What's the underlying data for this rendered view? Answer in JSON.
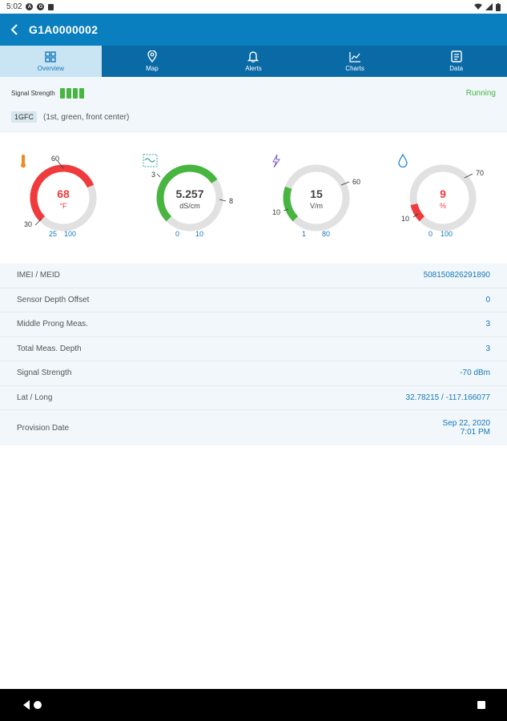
{
  "status_bar": {
    "time": "5:02"
  },
  "appbar": {
    "title": "G1A0000002"
  },
  "tabs": [
    {
      "label": "Overview",
      "icon": "grid-icon"
    },
    {
      "label": "Map",
      "icon": "map-pin-icon"
    },
    {
      "label": "Alerts",
      "icon": "bell-icon"
    },
    {
      "label": "Charts",
      "icon": "line-chart-icon"
    },
    {
      "label": "Data",
      "icon": "document-icon"
    }
  ],
  "summary": {
    "signal_label": "Signal Strength",
    "signal_bars": 4,
    "status": "Running",
    "probe_code": "1GFC",
    "probe_desc": "(1st, green, front center)"
  },
  "gauges": [
    {
      "icon": "thermometer-icon",
      "value": "68",
      "unit": "°F",
      "top_label": "60",
      "side_label": "30",
      "range_min": "25",
      "range_max": "100",
      "color": "#ef3b3b",
      "fill_fraction": 0.56
    },
    {
      "icon": "salinity-icon",
      "value": "5.257",
      "unit": "dS/cm",
      "top_label": "3",
      "side_label": "8",
      "range_min": "0",
      "range_max": "10",
      "color": "#48b540",
      "fill_fraction": 0.53
    },
    {
      "icon": "lightning-icon",
      "value": "15",
      "unit": "V/m",
      "top_label": "60",
      "side_label": "10",
      "range_min": "1",
      "range_max": "80",
      "color": "#48b540",
      "fill_fraction": 0.18
    },
    {
      "icon": "water-drop-icon",
      "value": "9",
      "unit": "%",
      "top_label": "70",
      "side_label": "10",
      "range_min": "0",
      "range_max": "100",
      "color": "#ef3b3b",
      "fill_fraction": 0.09
    }
  ],
  "details": [
    {
      "label": "IMEI / MEID",
      "value": "508150826291890"
    },
    {
      "label": "Sensor Depth Offset",
      "value": "0"
    },
    {
      "label": "Middle Prong Meas.",
      "value": "3"
    },
    {
      "label": "Total Meas. Depth",
      "value": "3"
    },
    {
      "label": "Signal Strength",
      "value": "-70 dBm"
    },
    {
      "label": "Lat / Long",
      "value": "32.78215 / -117.166077"
    },
    {
      "label": "Provision Date",
      "value_line1": "Sep 22, 2020",
      "value_line2": "7:01 PM"
    }
  ],
  "colors": {
    "primary": "#0a7fbf",
    "tab_bar": "#0a6aa6",
    "green": "#48b540",
    "red": "#ef3b3b",
    "link_blue": "#1778b8"
  }
}
